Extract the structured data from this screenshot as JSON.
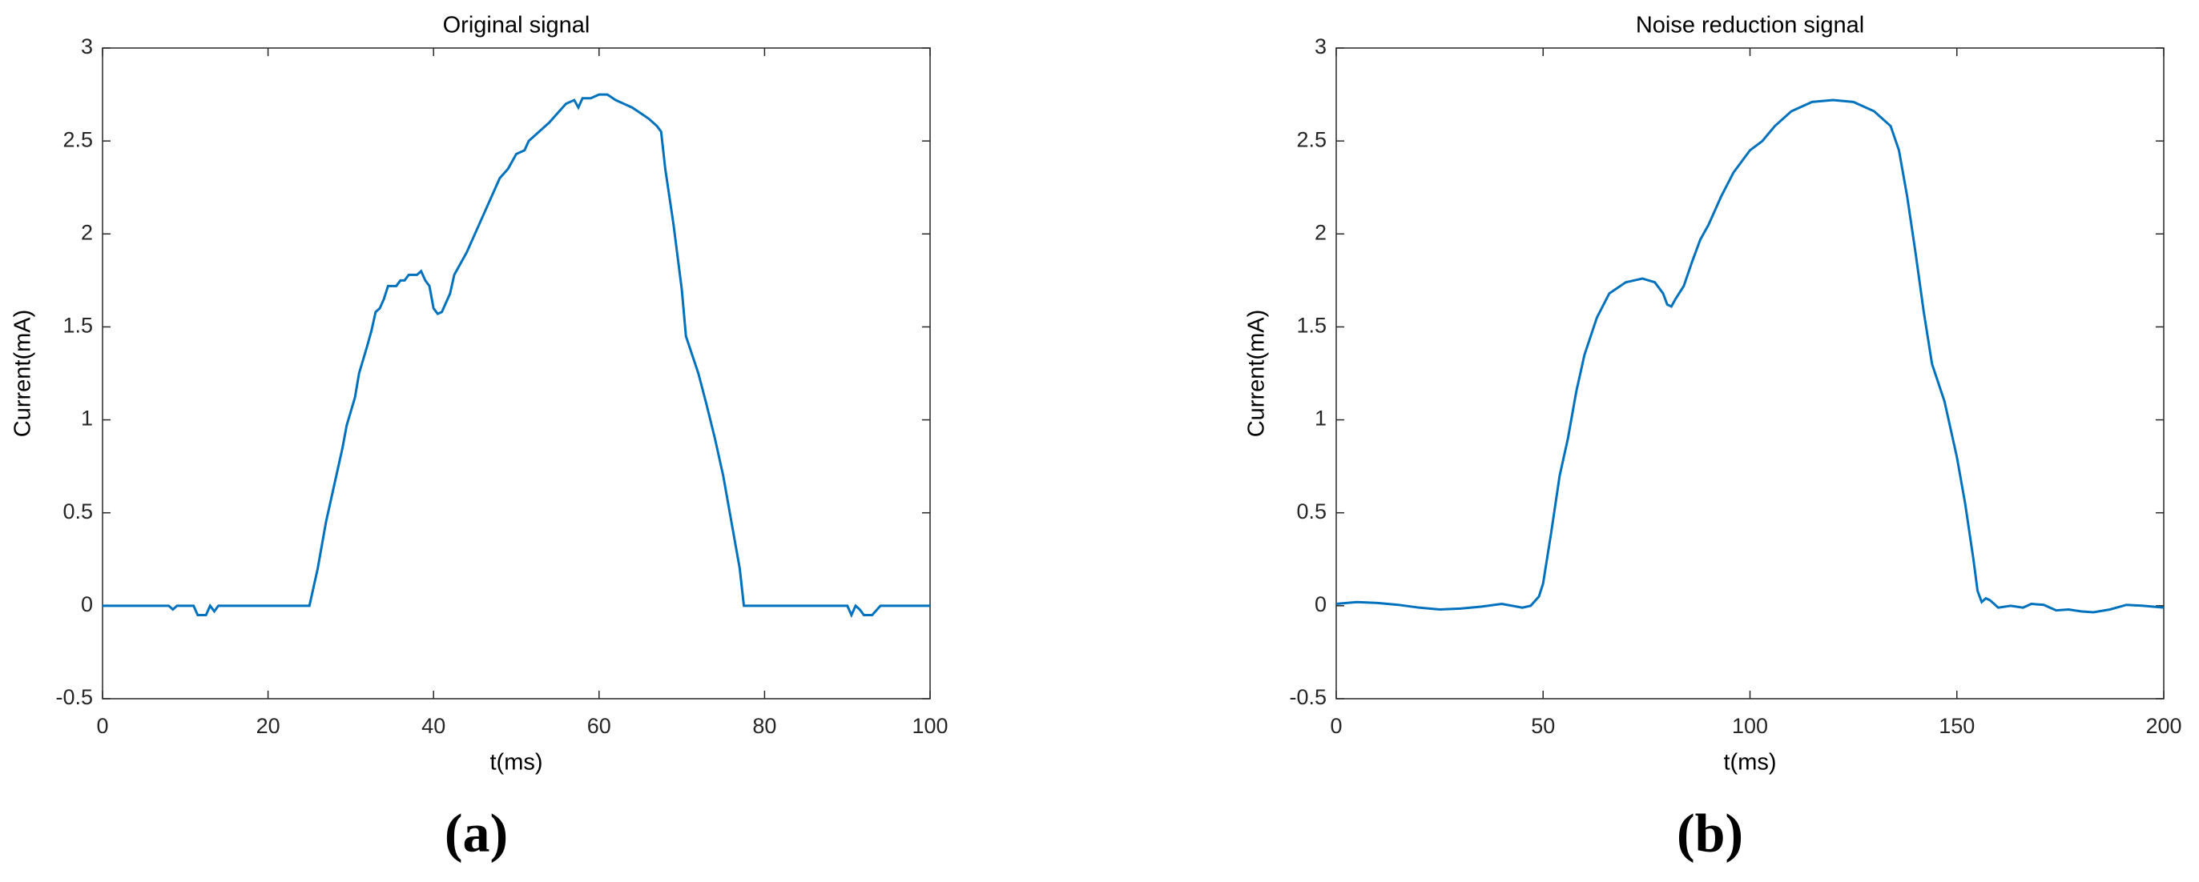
{
  "chart_data": [
    {
      "type": "line",
      "title": "Original signal",
      "xlabel": "t(ms)",
      "ylabel": "Current(mA)",
      "caption": "(a)",
      "color": "#0072bd",
      "xlim": [
        0,
        100
      ],
      "ylim": [
        -0.5,
        3
      ],
      "xticks": [
        0,
        20,
        40,
        60,
        80,
        100
      ],
      "yticks": [
        -0.5,
        0,
        0.5,
        1,
        1.5,
        2,
        2.5,
        3
      ],
      "x": [
        0,
        8,
        8.5,
        9,
        11,
        11.5,
        12.5,
        13,
        13.5,
        14,
        25,
        26,
        27,
        28,
        29,
        29.5,
        30.5,
        31,
        32,
        32.5,
        33,
        33.5,
        34,
        34.5,
        35.5,
        36,
        36.5,
        37,
        38,
        38.5,
        39,
        39.5,
        40,
        40.5,
        41,
        42,
        42.5,
        44,
        46,
        48,
        49,
        50,
        51,
        51.5,
        52,
        53,
        54,
        55,
        56,
        57,
        57.5,
        58,
        59,
        60,
        61,
        62,
        63,
        64,
        65,
        66,
        67,
        67.5,
        68,
        69,
        70,
        70.5,
        72,
        73,
        74,
        75,
        76,
        77,
        77.5,
        90,
        90.5,
        91,
        91.5,
        92,
        93,
        94,
        100
      ],
      "values": [
        0,
        0,
        -0.02,
        0,
        0,
        -0.05,
        -0.05,
        0,
        -0.03,
        0,
        0,
        0.2,
        0.45,
        0.65,
        0.85,
        0.97,
        1.12,
        1.25,
        1.4,
        1.48,
        1.58,
        1.6,
        1.65,
        1.72,
        1.72,
        1.75,
        1.75,
        1.78,
        1.78,
        1.8,
        1.75,
        1.72,
        1.6,
        1.57,
        1.58,
        1.68,
        1.78,
        1.9,
        2.1,
        2.3,
        2.35,
        2.43,
        2.45,
        2.5,
        2.52,
        2.56,
        2.6,
        2.65,
        2.7,
        2.72,
        2.68,
        2.73,
        2.73,
        2.75,
        2.75,
        2.72,
        2.7,
        2.68,
        2.65,
        2.62,
        2.58,
        2.55,
        2.35,
        2.05,
        1.7,
        1.45,
        1.25,
        1.08,
        0.9,
        0.7,
        0.45,
        0.2,
        0,
        0,
        -0.05,
        0,
        -0.02,
        -0.05,
        -0.05,
        0,
        0
      ]
    },
    {
      "type": "line",
      "title": "Noise reduction signal",
      "xlabel": "t(ms)",
      "ylabel": "Current(mA)",
      "caption": "(b)",
      "color": "#0072bd",
      "xlim": [
        0,
        200
      ],
      "ylim": [
        -0.5,
        3
      ],
      "xticks": [
        0,
        50,
        100,
        150,
        200
      ],
      "yticks": [
        -0.5,
        0,
        0.5,
        1,
        1.5,
        2,
        2.5,
        3
      ],
      "x": [
        0,
        5,
        10,
        15,
        20,
        25,
        30,
        35,
        40,
        45,
        47,
        49,
        50,
        52,
        54,
        56,
        58,
        60,
        63,
        66,
        70,
        74,
        77,
        79,
        80,
        81,
        82,
        84,
        86,
        88,
        90,
        93,
        96,
        100,
        103,
        106,
        110,
        115,
        120,
        125,
        130,
        134,
        136,
        138,
        140,
        142,
        144,
        147,
        150,
        152,
        154,
        155,
        156,
        157,
        158,
        160,
        163,
        166,
        168,
        171,
        174,
        177,
        180,
        183,
        187,
        191,
        195,
        200
      ],
      "values": [
        0.01,
        0.02,
        0.015,
        0.005,
        -0.01,
        -0.02,
        -0.015,
        -0.005,
        0.01,
        -0.01,
        0,
        0.05,
        0.12,
        0.4,
        0.7,
        0.9,
        1.15,
        1.35,
        1.55,
        1.68,
        1.74,
        1.76,
        1.74,
        1.68,
        1.62,
        1.61,
        1.65,
        1.72,
        1.85,
        1.97,
        2.05,
        2.2,
        2.33,
        2.45,
        2.5,
        2.58,
        2.66,
        2.71,
        2.72,
        2.71,
        2.66,
        2.58,
        2.45,
        2.2,
        1.9,
        1.58,
        1.3,
        1.1,
        0.8,
        0.55,
        0.25,
        0.08,
        0.02,
        0.04,
        0.03,
        -0.01,
        0,
        -0.01,
        0.01,
        0.005,
        -0.025,
        -0.02,
        -0.03,
        -0.035,
        -0.02,
        0.005,
        0,
        -0.01
      ]
    }
  ]
}
